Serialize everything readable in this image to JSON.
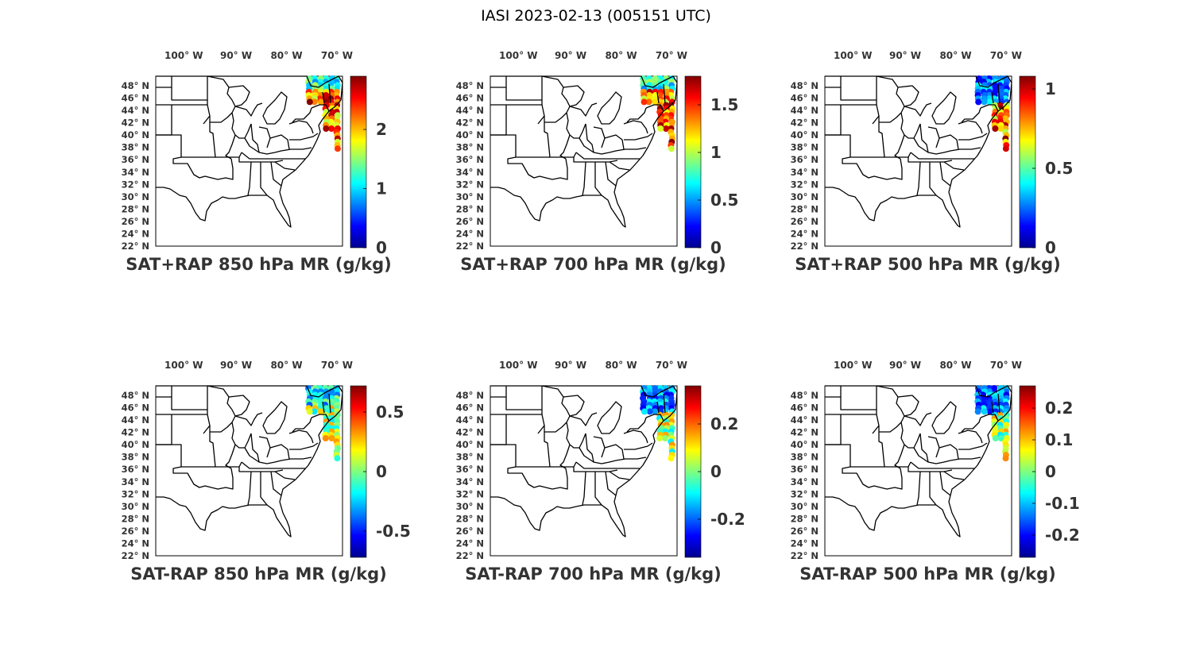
{
  "figure_title": "IASI 2023-02-13 (005151 UTC)",
  "lon_ticks": [
    "100° W",
    "90° W",
    "80° W",
    "70° W"
  ],
  "lat_ticks": [
    "48° N",
    "46° N",
    "44° N",
    "42° N",
    "40° N",
    "38° N",
    "36° N",
    "34° N",
    "32° N",
    "30° N",
    "28° N",
    "26° N",
    "24° N",
    "22° N"
  ],
  "map_extent": {
    "lon_min": -107,
    "lon_max": -66,
    "lat_min": 21,
    "lat_max": 50
  },
  "colormap": "jet",
  "panels": [
    {
      "title": "SAT+RAP 850 hPa MR (g/kg)",
      "clim": [
        0,
        2.9
      ],
      "cbar_ticks": [
        "0",
        "1",
        "2"
      ],
      "cbar_tick_values": [
        0,
        1,
        2
      ]
    },
    {
      "title": "SAT+RAP 700 hPa MR (g/kg)",
      "clim": [
        0,
        1.8
      ],
      "cbar_ticks": [
        "0",
        "0.5",
        "1",
        "1.5"
      ],
      "cbar_tick_values": [
        0,
        0.5,
        1,
        1.5
      ]
    },
    {
      "title": "SAT+RAP 500 hPa MR (g/kg)",
      "clim": [
        0,
        1.08
      ],
      "cbar_ticks": [
        "0",
        "0.5",
        "1"
      ],
      "cbar_tick_values": [
        0,
        0.5,
        1
      ]
    },
    {
      "title": "SAT-RAP 850 hPa MR (g/kg)",
      "clim": [
        -0.72,
        0.72
      ],
      "cbar_ticks": [
        "-0.5",
        "0",
        "0.5"
      ],
      "cbar_tick_values": [
        -0.5,
        0,
        0.5
      ]
    },
    {
      "title": "SAT-RAP 700 hPa MR (g/kg)",
      "clim": [
        -0.36,
        0.36
      ],
      "cbar_ticks": [
        "-0.2",
        "0",
        "0.2"
      ],
      "cbar_tick_values": [
        -0.2,
        0,
        0.2
      ]
    },
    {
      "title": "SAT-RAP 500 hPa MR (g/kg)",
      "clim": [
        -0.27,
        0.27
      ],
      "cbar_ticks": [
        "-0.2",
        "-0.1",
        "0",
        "0.1",
        "0.2"
      ],
      "cbar_tick_values": [
        -0.2,
        -0.1,
        0,
        0.1,
        0.2
      ]
    }
  ],
  "colors": {
    "border": "#000000",
    "text": "#333333",
    "title": "#000000"
  }
}
